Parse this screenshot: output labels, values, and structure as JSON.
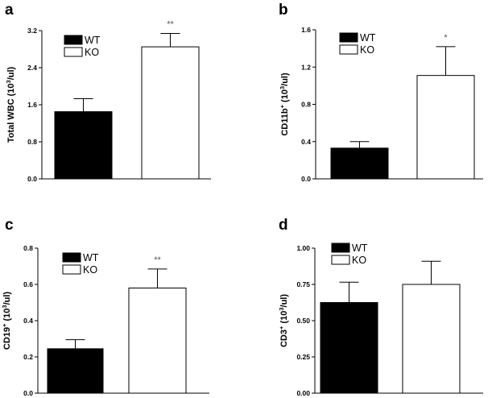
{
  "chart_data": [
    {
      "panel": "a",
      "type": "bar",
      "ylabel": "Total WBC (10",
      "ylabel_sup": "3",
      "ylabel_tail": "/ul)",
      "ylim": [
        0,
        3.2
      ],
      "yticks": [
        "0.0",
        "0.8",
        "1.6",
        "2.4",
        "3.2"
      ],
      "legend": [
        {
          "name": "WT",
          "color": "#000000"
        },
        {
          "name": "KO",
          "color": "#ffffff"
        }
      ],
      "legend_position": "top-left",
      "categories": [
        "WT",
        "KO"
      ],
      "values": [
        1.45,
        2.85
      ],
      "errors": [
        0.28,
        0.29
      ],
      "significance": [
        "",
        "**"
      ]
    },
    {
      "panel": "b",
      "type": "bar",
      "ylabel": "CD11b",
      "ylabel_sup": "+",
      "ylabel_tail": " (10",
      "ylabel_sup2": "3",
      "ylabel_tail2": "/ul)",
      "ylim": [
        0,
        1.6
      ],
      "yticks": [
        "0.0",
        "0.4",
        "0.8",
        "1.2",
        "1.6"
      ],
      "legend": [
        {
          "name": "WT",
          "color": "#000000"
        },
        {
          "name": "KO",
          "color": "#ffffff"
        }
      ],
      "legend_position": "top-left",
      "categories": [
        "WT",
        "KO"
      ],
      "values": [
        0.33,
        1.11
      ],
      "errors": [
        0.07,
        0.31
      ],
      "significance": [
        "",
        "*"
      ]
    },
    {
      "panel": "c",
      "type": "bar",
      "ylabel": "CD19",
      "ylabel_sup": "+",
      "ylabel_tail": " (10",
      "ylabel_sup2": "3",
      "ylabel_tail2": "/ul)",
      "ylim": [
        0,
        0.8
      ],
      "yticks": [
        "0.0",
        "0.2",
        "0.4",
        "0.6",
        "0.8"
      ],
      "legend": [
        {
          "name": "WT",
          "color": "#000000"
        },
        {
          "name": "KO",
          "color": "#ffffff"
        }
      ],
      "legend_position": "top-left",
      "categories": [
        "WT",
        "KO"
      ],
      "values": [
        0.245,
        0.58
      ],
      "errors": [
        0.05,
        0.105
      ],
      "significance": [
        "",
        "**"
      ]
    },
    {
      "panel": "d",
      "type": "bar",
      "ylabel": "CD3",
      "ylabel_sup": "+",
      "ylabel_tail": " (10",
      "ylabel_sup2": "3",
      "ylabel_tail2": "/ul)",
      "ylim": [
        0,
        1.0
      ],
      "yticks": [
        "0.00",
        "0.25",
        "0.50",
        "0.75",
        "1.00"
      ],
      "legend": [
        {
          "name": "WT",
          "color": "#000000"
        },
        {
          "name": "KO",
          "color": "#ffffff"
        }
      ],
      "legend_position": "top-left",
      "categories": [
        "WT",
        "KO"
      ],
      "values": [
        0.625,
        0.75
      ],
      "errors": [
        0.14,
        0.16
      ],
      "significance": [
        "",
        ""
      ]
    }
  ]
}
